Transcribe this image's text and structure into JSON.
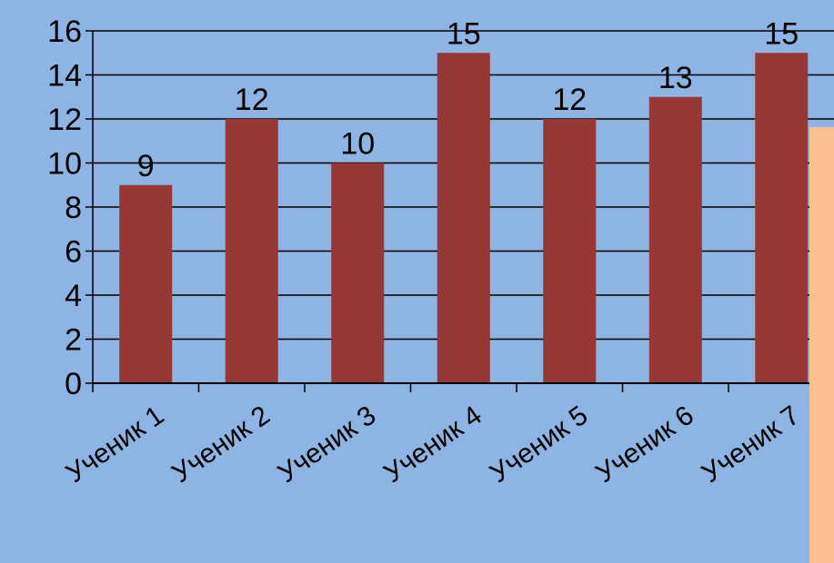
{
  "chart_data": {
    "type": "bar",
    "title": "",
    "xlabel": "",
    "ylabel": "",
    "categories": [
      "Ученик 1",
      "Ученик 2",
      "Ученик 3",
      "Ученик 4",
      "Ученик 5",
      "Ученик 6",
      "Ученик 7"
    ],
    "values": [
      9,
      12,
      10,
      15,
      12,
      13,
      15
    ],
    "ylim": [
      0,
      16
    ],
    "yticks": [
      0,
      2,
      4,
      6,
      8,
      10,
      12,
      14,
      16
    ],
    "grid": true,
    "data_labels": true,
    "bar_color": "#953735",
    "background_color": "#8eb4e3",
    "overlay_panel_color": "#fac090"
  }
}
